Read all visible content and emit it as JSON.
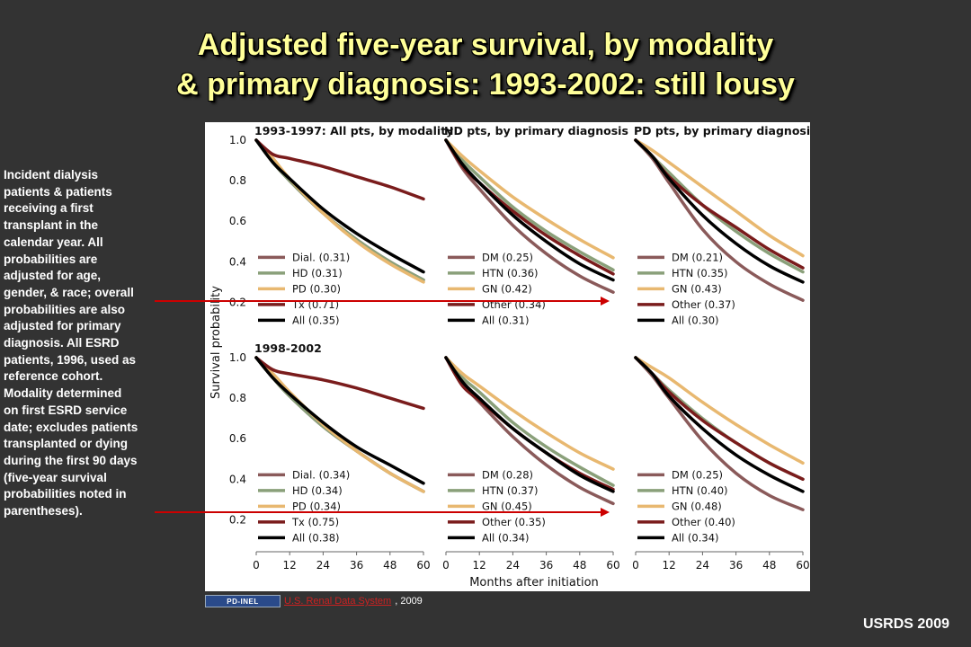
{
  "slide": {
    "title_line1": "Adjusted five-year survival, by modality",
    "title_line2": "& primary diagnosis: 1993-2002: still lousy",
    "side_note": "Incident dialysis patients & patients receiving a first transplant in the calendar year. All probabilities are adjusted for age, gender, & race; overall probabilities are also adjusted for primary diagnosis. All ESRD patients, 1996, used as reference cohort. Modality determined on first ESRD service date; excludes patients transplanted or dying during the first 90 days (five-year survival probabilities noted in parentheses).",
    "credit_badge": "PD-INEL",
    "credit_link": "U.S. Renal Data System",
    "credit_year": ", 2009",
    "footer": "USRDS 2009"
  },
  "colors": {
    "background": "#333333",
    "title": "#ffff99",
    "arrow": "#cc0000"
  },
  "chart_data": {
    "type": "line",
    "ylabel": "Survival probability",
    "xlabel": "Months after initiation",
    "xticks": [
      0,
      12,
      24,
      36,
      48,
      60
    ],
    "yticks": [
      0.2,
      0.4,
      0.6,
      0.8,
      1.0
    ],
    "ytick_labels": [
      "0.2",
      "0.4",
      "0.6",
      "0.8",
      "1.0"
    ],
    "xlim": [
      0,
      60
    ],
    "ylim": [
      0.1,
      1.0
    ],
    "x": [
      0,
      6,
      12,
      24,
      36,
      48,
      60
    ],
    "column_titles": [
      "1993-1997: All pts, by modality",
      "HD pts, by primary diagnosis",
      "PD pts, by primary diagnosis"
    ],
    "row_titles": [
      "1993-1997",
      "1998-2002"
    ],
    "series_colors": {
      "Dial.": "#8a5a5a",
      "HD": "#8aa07a",
      "PD": "#e8b870",
      "Tx": "#7a1c1c",
      "All": "#000000",
      "DM": "#8a5a5a",
      "HTN": "#8aa07a",
      "GN": "#e8b870",
      "Other": "#7a1c1c"
    },
    "panels": [
      {
        "series": [
          {
            "name": "Dial. (0.31)",
            "key": "Dial.",
            "values": [
              1.0,
              0.89,
              0.8,
              0.64,
              0.51,
              0.4,
              0.31
            ]
          },
          {
            "name": "HD (0.31)",
            "key": "HD",
            "values": [
              1.0,
              0.89,
              0.8,
              0.64,
              0.51,
              0.4,
              0.31
            ]
          },
          {
            "name": "PD (0.30)",
            "key": "PD",
            "values": [
              1.0,
              0.91,
              0.81,
              0.64,
              0.5,
              0.39,
              0.3
            ]
          },
          {
            "name": "Tx (0.71)",
            "key": "Tx",
            "values": [
              1.0,
              0.93,
              0.91,
              0.87,
              0.82,
              0.77,
              0.71
            ]
          },
          {
            "name": "All (0.35)",
            "key": "All",
            "values": [
              1.0,
              0.89,
              0.81,
              0.66,
              0.54,
              0.44,
              0.35
            ]
          }
        ]
      },
      {
        "series": [
          {
            "name": "DM (0.25)",
            "key": "DM",
            "values": [
              1.0,
              0.86,
              0.76,
              0.58,
              0.44,
              0.33,
              0.25
            ]
          },
          {
            "name": "HTN (0.36)",
            "key": "HTN",
            "values": [
              1.0,
              0.9,
              0.82,
              0.67,
              0.55,
              0.45,
              0.36
            ]
          },
          {
            "name": "GN (0.42)",
            "key": "GN",
            "values": [
              1.0,
              0.92,
              0.85,
              0.72,
              0.61,
              0.51,
              0.42
            ]
          },
          {
            "name": "Other (0.34)",
            "key": "Other",
            "values": [
              1.0,
              0.87,
              0.79,
              0.65,
              0.53,
              0.43,
              0.34
            ]
          },
          {
            "name": "All (0.31)",
            "key": "All",
            "values": [
              1.0,
              0.88,
              0.79,
              0.63,
              0.5,
              0.39,
              0.31
            ]
          }
        ]
      },
      {
        "series": [
          {
            "name": "DM (0.21)",
            "key": "DM",
            "values": [
              1.0,
              0.91,
              0.79,
              0.56,
              0.4,
              0.29,
              0.21
            ]
          },
          {
            "name": "HTN (0.35)",
            "key": "HTN",
            "values": [
              1.0,
              0.92,
              0.84,
              0.68,
              0.55,
              0.44,
              0.35
            ]
          },
          {
            "name": "GN (0.43)",
            "key": "GN",
            "values": [
              1.0,
              0.95,
              0.89,
              0.77,
              0.65,
              0.53,
              0.43
            ]
          },
          {
            "name": "Other (0.37)",
            "key": "Other",
            "values": [
              1.0,
              0.92,
              0.82,
              0.68,
              0.57,
              0.46,
              0.37
            ]
          },
          {
            "name": "All (0.30)",
            "key": "All",
            "values": [
              1.0,
              0.92,
              0.81,
              0.63,
              0.49,
              0.38,
              0.3
            ]
          }
        ]
      },
      {
        "series": [
          {
            "name": "Dial. (0.34)",
            "key": "Dial.",
            "values": [
              1.0,
              0.9,
              0.81,
              0.66,
              0.54,
              0.43,
              0.34
            ]
          },
          {
            "name": "HD (0.34)",
            "key": "HD",
            "values": [
              1.0,
              0.9,
              0.81,
              0.66,
              0.54,
              0.43,
              0.34
            ]
          },
          {
            "name": "PD (0.34)",
            "key": "PD",
            "values": [
              1.0,
              0.92,
              0.83,
              0.67,
              0.54,
              0.43,
              0.34
            ]
          },
          {
            "name": "Tx (0.75)",
            "key": "Tx",
            "values": [
              1.0,
              0.94,
              0.92,
              0.89,
              0.85,
              0.8,
              0.75
            ]
          },
          {
            "name": "All (0.38)",
            "key": "All",
            "values": [
              1.0,
              0.9,
              0.82,
              0.68,
              0.56,
              0.47,
              0.38
            ]
          }
        ]
      },
      {
        "series": [
          {
            "name": "DM (0.28)",
            "key": "DM",
            "values": [
              1.0,
              0.87,
              0.78,
              0.61,
              0.47,
              0.36,
              0.28
            ]
          },
          {
            "name": "HTN (0.37)",
            "key": "HTN",
            "values": [
              1.0,
              0.9,
              0.83,
              0.68,
              0.56,
              0.46,
              0.37
            ]
          },
          {
            "name": "GN (0.45)",
            "key": "GN",
            "values": [
              1.0,
              0.92,
              0.86,
              0.74,
              0.63,
              0.53,
              0.45
            ]
          },
          {
            "name": "Other (0.35)",
            "key": "Other",
            "values": [
              1.0,
              0.86,
              0.79,
              0.65,
              0.53,
              0.43,
              0.35
            ]
          },
          {
            "name": "All (0.34)",
            "key": "All",
            "values": [
              1.0,
              0.88,
              0.8,
              0.65,
              0.53,
              0.42,
              0.34
            ]
          }
        ]
      },
      {
        "series": [
          {
            "name": "DM (0.25)",
            "key": "DM",
            "values": [
              1.0,
              0.91,
              0.8,
              0.59,
              0.43,
              0.32,
              0.25
            ]
          },
          {
            "name": "HTN (0.40)",
            "key": "HTN",
            "values": [
              1.0,
              0.92,
              0.84,
              0.7,
              0.58,
              0.48,
              0.4
            ]
          },
          {
            "name": "GN (0.48)",
            "key": "GN",
            "values": [
              1.0,
              0.95,
              0.9,
              0.78,
              0.67,
              0.57,
              0.48
            ]
          },
          {
            "name": "Other (0.40)",
            "key": "Other",
            "values": [
              1.0,
              0.92,
              0.83,
              0.69,
              0.58,
              0.48,
              0.4
            ]
          },
          {
            "name": "All (0.34)",
            "key": "All",
            "values": [
              1.0,
              0.92,
              0.81,
              0.65,
              0.52,
              0.42,
              0.34
            ]
          }
        ]
      }
    ]
  }
}
